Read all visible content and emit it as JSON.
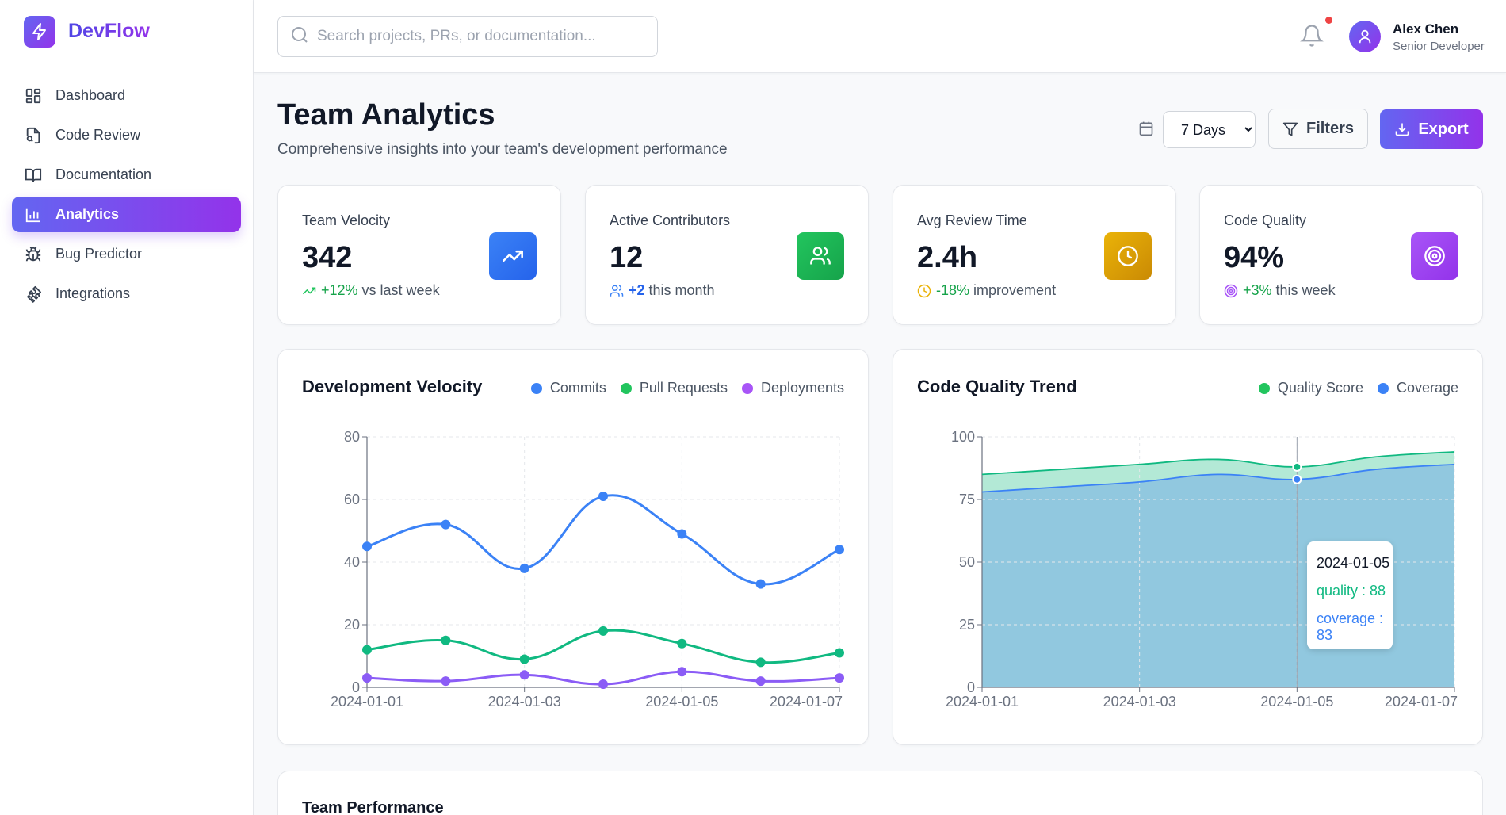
{
  "brand": {
    "name": "DevFlow",
    "logo_icon": "lightning-bolt-icon"
  },
  "sidebar": {
    "items": [
      {
        "label": "Dashboard",
        "icon": "dashboard-grid-icon",
        "active": false
      },
      {
        "label": "Code Review",
        "icon": "file-search-icon",
        "active": false
      },
      {
        "label": "Documentation",
        "icon": "book-open-icon",
        "active": false
      },
      {
        "label": "Analytics",
        "icon": "bar-chart-icon",
        "active": true
      },
      {
        "label": "Bug Predictor",
        "icon": "bug-icon",
        "active": false
      },
      {
        "label": "Integrations",
        "icon": "puzzle-icon",
        "active": false
      }
    ]
  },
  "header": {
    "search_placeholder": "Search projects, PRs, or documentation...",
    "search_value": "",
    "notifications_unread": true,
    "user": {
      "name": "Alex Chen",
      "role": "Senior Developer"
    }
  },
  "page": {
    "title": "Team Analytics",
    "subtitle": "Comprehensive insights into your team's development performance",
    "range_selected": "7 Days",
    "filters_label": "Filters",
    "export_label": "Export"
  },
  "stats": [
    {
      "label": "Team Velocity",
      "value": "342",
      "trend_value": "+12%",
      "trend_text": "vs last week",
      "trend_color": "#16a34a",
      "icon": "trending-up-icon",
      "icon_bg": [
        "#3b82f6",
        "#2563eb"
      ],
      "trend_icon": "trending-up-icon",
      "trend_icon_color": "#22c55e"
    },
    {
      "label": "Active Contributors",
      "value": "12",
      "trend_value": "+2",
      "trend_text": "this month",
      "trend_color": "#2563eb",
      "icon": "users-icon",
      "icon_bg": [
        "#22c55e",
        "#16a34a"
      ],
      "trend_icon": "users-icon",
      "trend_icon_color": "#3b82f6"
    },
    {
      "label": "Avg Review Time",
      "value": "2.4h",
      "trend_value": "-18%",
      "trend_text": "improvement",
      "trend_color": "#16a34a",
      "icon": "clock-icon",
      "icon_bg": [
        "#eab308",
        "#ca8a04"
      ],
      "trend_icon": "clock-icon",
      "trend_icon_color": "#eab308"
    },
    {
      "label": "Code Quality",
      "value": "94%",
      "trend_value": "+3%",
      "trend_text": "this week",
      "trend_color": "#16a34a",
      "icon": "target-icon",
      "icon_bg": [
        "#a855f7",
        "#9333ea"
      ],
      "trend_icon": "target-icon",
      "trend_icon_color": "#a855f7"
    }
  ],
  "perf": {
    "title": "Team Performance"
  },
  "chart_data": [
    {
      "type": "line",
      "title": "Development Velocity",
      "x": [
        "2024-01-01",
        "2024-01-02",
        "2024-01-03",
        "2024-01-04",
        "2024-01-05",
        "2024-01-06",
        "2024-01-07"
      ],
      "x_tick_labels": [
        "2024-01-01",
        "2024-01-03",
        "2024-01-05",
        "2024-01-07"
      ],
      "y_ticks": [
        0,
        20,
        40,
        60,
        80
      ],
      "ylim": [
        0,
        80
      ],
      "grid": true,
      "legend_position": "top-right",
      "series": [
        {
          "name": "Commits",
          "color": "#3b82f6",
          "values": [
            45,
            52,
            38,
            61,
            49,
            33,
            44
          ]
        },
        {
          "name": "Pull Requests",
          "color": "#10b981",
          "values": [
            12,
            15,
            9,
            18,
            14,
            8,
            11
          ]
        },
        {
          "name": "Deployments",
          "color": "#8b5cf6",
          "values": [
            3,
            2,
            4,
            1,
            5,
            2,
            3
          ]
        }
      ],
      "legend": [
        {
          "name": "Commits",
          "color": "#3b82f6"
        },
        {
          "name": "Pull Requests",
          "color": "#22c55e"
        },
        {
          "name": "Deployments",
          "color": "#a855f7"
        }
      ]
    },
    {
      "type": "area",
      "title": "Code Quality Trend",
      "x": [
        "2024-01-01",
        "2024-01-02",
        "2024-01-03",
        "2024-01-04",
        "2024-01-05",
        "2024-01-06",
        "2024-01-07"
      ],
      "x_tick_labels": [
        "2024-01-01",
        "2024-01-03",
        "2024-01-05",
        "2024-01-07"
      ],
      "y_ticks": [
        0,
        25,
        50,
        75,
        100
      ],
      "ylim": [
        0,
        100
      ],
      "grid": true,
      "legend_position": "top-right",
      "series": [
        {
          "name": "quality",
          "color": "#10b981",
          "fill": "#b3e9d6",
          "values": [
            85,
            87,
            89,
            91,
            88,
            92,
            94
          ]
        },
        {
          "name": "coverage",
          "color": "#3b82f6",
          "fill": "#91c8df",
          "values": [
            78,
            80,
            82,
            85,
            83,
            87,
            89
          ]
        }
      ],
      "legend": [
        {
          "name": "Quality Score",
          "color": "#22c55e"
        },
        {
          "name": "Coverage",
          "color": "#3b82f6"
        }
      ],
      "tooltip": {
        "date": "2024-01-05",
        "lines": [
          {
            "text": "quality : 88",
            "color": "#10b981"
          },
          {
            "text": "coverage : 83",
            "color": "#3b82f6"
          }
        ]
      }
    }
  ]
}
